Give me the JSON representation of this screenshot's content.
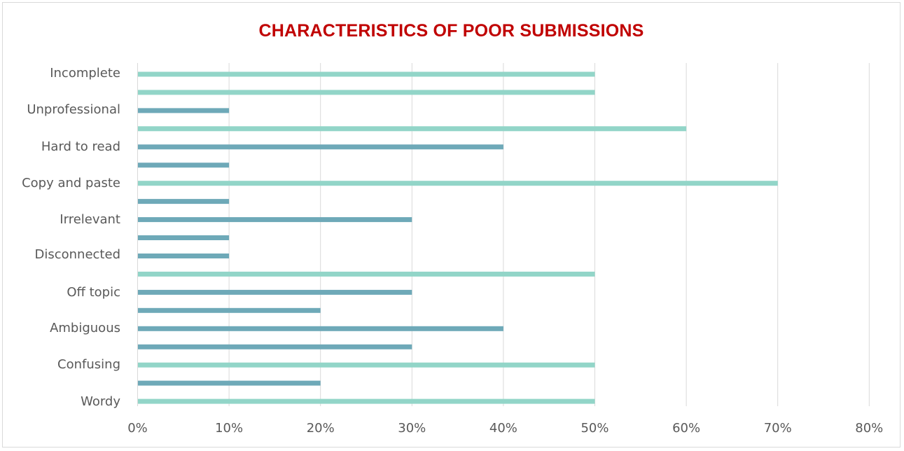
{
  "chart_data": {
    "type": "bar",
    "orientation": "horizontal",
    "title": "CHARACTERISTICS OF POOR SUBMISSIONS",
    "categories": [
      "Incomplete",
      "Unprofessional",
      "Hard to read",
      "Copy and paste",
      "Irrelevant",
      "Disconnected",
      "Off topic",
      "Ambiguous",
      "Confusing",
      "Wordy"
    ],
    "bars": [
      {
        "category": "Incomplete",
        "color": "light",
        "value": 0.5
      },
      {
        "category": "Incomplete",
        "color": "light",
        "value": 0.5
      },
      {
        "category": "Unprofessional",
        "color": "dark",
        "value": 0.1
      },
      {
        "category": "Unprofessional",
        "color": "light",
        "value": 0.6
      },
      {
        "category": "Hard to read",
        "color": "dark",
        "value": 0.4
      },
      {
        "category": "Hard to read",
        "color": "dark",
        "value": 0.1
      },
      {
        "category": "Copy and paste",
        "color": "light",
        "value": 0.7
      },
      {
        "category": "Copy and paste",
        "color": "dark",
        "value": 0.1
      },
      {
        "category": "Irrelevant",
        "color": "dark",
        "value": 0.3
      },
      {
        "category": "Irrelevant",
        "color": "dark",
        "value": 0.1
      },
      {
        "category": "Disconnected",
        "color": "dark",
        "value": 0.1
      },
      {
        "category": "Disconnected",
        "color": "light",
        "value": 0.5
      },
      {
        "category": "Off topic",
        "color": "dark",
        "value": 0.3
      },
      {
        "category": "Off topic",
        "color": "dark",
        "value": 0.2
      },
      {
        "category": "Ambiguous",
        "color": "dark",
        "value": 0.4
      },
      {
        "category": "Ambiguous",
        "color": "dark",
        "value": 0.3
      },
      {
        "category": "Confusing",
        "color": "light",
        "value": 0.5
      },
      {
        "category": "Confusing",
        "color": "dark",
        "value": 0.2
      },
      {
        "category": "Wordy",
        "color": "light",
        "value": 0.5
      }
    ],
    "xlim": [
      0,
      0.8
    ],
    "xticks": [
      "0%",
      "10%",
      "20%",
      "30%",
      "40%",
      "50%",
      "60%",
      "70%",
      "80%"
    ],
    "grid": true,
    "legend": "none"
  },
  "colors": {
    "title": "#c00000",
    "bar_light": "#92d5c8",
    "bar_dark": "#6ea9b8",
    "grid": "#d9d9d9",
    "text": "#595959"
  }
}
